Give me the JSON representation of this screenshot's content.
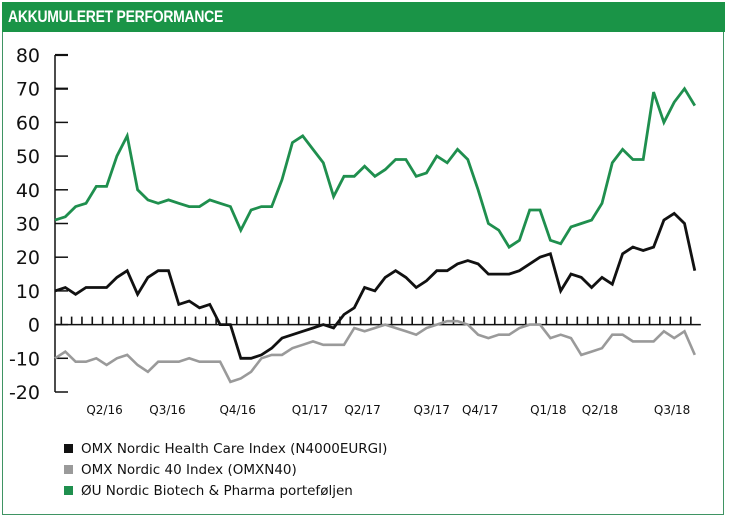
{
  "header": {
    "title": "AKKUMULERET PERFORMANCE"
  },
  "colors": {
    "brand": "#1a9447",
    "health_care": "#111111",
    "omx40": "#9a9a9a",
    "biotech": "#1f8f4e"
  },
  "chart_data": {
    "type": "line",
    "title": "AKKUMULERET PERFORMANCE",
    "xlabel": "",
    "ylabel": "",
    "ylim": [
      -20,
      80
    ],
    "yticks": [
      80,
      70,
      60,
      50,
      40,
      30,
      20,
      10,
      0,
      -10,
      -20
    ],
    "ytick_labels": [
      "80",
      "70",
      "60",
      "50",
      "40",
      "30",
      "20",
      "10",
      "0",
      "-10",
      "-20"
    ],
    "x_count": 63,
    "xtick_labels": [
      {
        "label": "Q2/16",
        "index": 4.8
      },
      {
        "label": "Q3/16",
        "index": 10.9
      },
      {
        "label": "Q4/16",
        "index": 17.7
      },
      {
        "label": "Q1/17",
        "index": 24.7
      },
      {
        "label": "Q2/17",
        "index": 29.8
      },
      {
        "label": "Q3/17",
        "index": 36.5
      },
      {
        "label": "Q4/17",
        "index": 41.2
      },
      {
        "label": "Q1/18",
        "index": 47.8
      },
      {
        "label": "Q2/18",
        "index": 52.8
      },
      {
        "label": "Q3/18",
        "index": 59.8
      }
    ],
    "grid": false,
    "legend_position": "bottom-left",
    "series": [
      {
        "name": "OMX Nordic Health Care Index (N4000EURGI)",
        "color": "#111111",
        "values": [
          10,
          11,
          9,
          11,
          11,
          11,
          14,
          16,
          9,
          14,
          16,
          16,
          6,
          7,
          5,
          6,
          0,
          0,
          -10,
          -10,
          -9,
          -7,
          -4,
          -3,
          -2,
          -1,
          0,
          -1,
          3,
          5,
          11,
          10,
          14,
          16,
          14,
          11,
          13,
          16,
          16,
          18,
          19,
          18,
          15,
          15,
          15,
          16,
          18,
          20,
          21,
          10,
          15,
          14,
          11,
          14,
          12,
          21,
          23,
          22,
          23,
          31,
          33,
          30,
          16
        ]
      },
      {
        "name": "OMX Nordic 40 Index (OMXN40)",
        "color": "#9a9a9a",
        "values": [
          -10,
          -8,
          -11,
          -11,
          -10,
          -12,
          -10,
          -9,
          -12,
          -14,
          -11,
          -11,
          -11,
          -10,
          -11,
          -11,
          -11,
          -17,
          -16,
          -14,
          -10,
          -9,
          -9,
          -7,
          -6,
          -5,
          -6,
          -6,
          -6,
          -1,
          -2,
          -1,
          0,
          -1,
          -2,
          -3,
          -1,
          0,
          1,
          1,
          0,
          -3,
          -4,
          -3,
          -3,
          -1,
          0,
          0,
          -4,
          -3,
          -4,
          -9,
          -8,
          -7,
          -3,
          -3,
          -5,
          -5,
          -5,
          -2,
          -4,
          -2,
          -9
        ]
      },
      {
        "name": "ØU Nordic Biotech & Pharma porteføljen",
        "color": "#1f8f4e",
        "values": [
          31,
          32,
          35,
          36,
          41,
          41,
          50,
          56,
          40,
          37,
          36,
          37,
          36,
          35,
          35,
          37,
          36,
          35,
          28,
          34,
          35,
          35,
          43,
          54,
          56,
          52,
          48,
          38,
          44,
          44,
          47,
          44,
          46,
          49,
          49,
          44,
          45,
          50,
          48,
          52,
          49,
          40,
          30,
          28,
          23,
          25,
          34,
          34,
          25,
          24,
          29,
          30,
          31,
          36,
          48,
          52,
          49,
          49,
          69,
          60,
          66,
          70,
          65
        ]
      }
    ]
  },
  "legend": [
    {
      "label": "OMX Nordic Health Care Index (N4000EURGI)",
      "color": "#111111"
    },
    {
      "label": "OMX Nordic 40 Index (OMXN40)",
      "color": "#9a9a9a"
    },
    {
      "label": "ØU Nordic Biotech & Pharma porteføljen",
      "color": "#1f8f4e"
    }
  ]
}
